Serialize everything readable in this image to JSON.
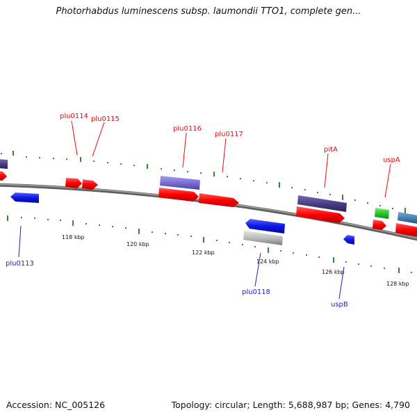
{
  "title": "Photorhabdus luminescens subsp. laumondii TTO1, complete gen...",
  "footer": {
    "accession": "Accession: NC_005126",
    "summary": "Topology: circular; Length: 5,688,987 bp; Genes: 4,790"
  },
  "scale": {
    "labels": [
      "118 kbp",
      "120 kbp",
      "122 kbp",
      "124 kbp",
      "126 kbp",
      "128 kbp"
    ]
  },
  "genes_top": [
    "plu0114",
    "plu0115",
    "plu0116",
    "plu0117",
    "pitA",
    "uspA"
  ],
  "genes_bottom": [
    "plu0113",
    "plu0118",
    "uspB"
  ],
  "colors": {
    "cds": "#ff0000",
    "gene_forward": "#4a3f86",
    "gene_light": "#7b6fd6",
    "reverse_cds": "#0a17e8",
    "rna": "#2ec62e",
    "other": "#4682b4",
    "pseudo": "#bdbdbd",
    "backbone": "#808080",
    "ticks": "#2f8a2f"
  }
}
